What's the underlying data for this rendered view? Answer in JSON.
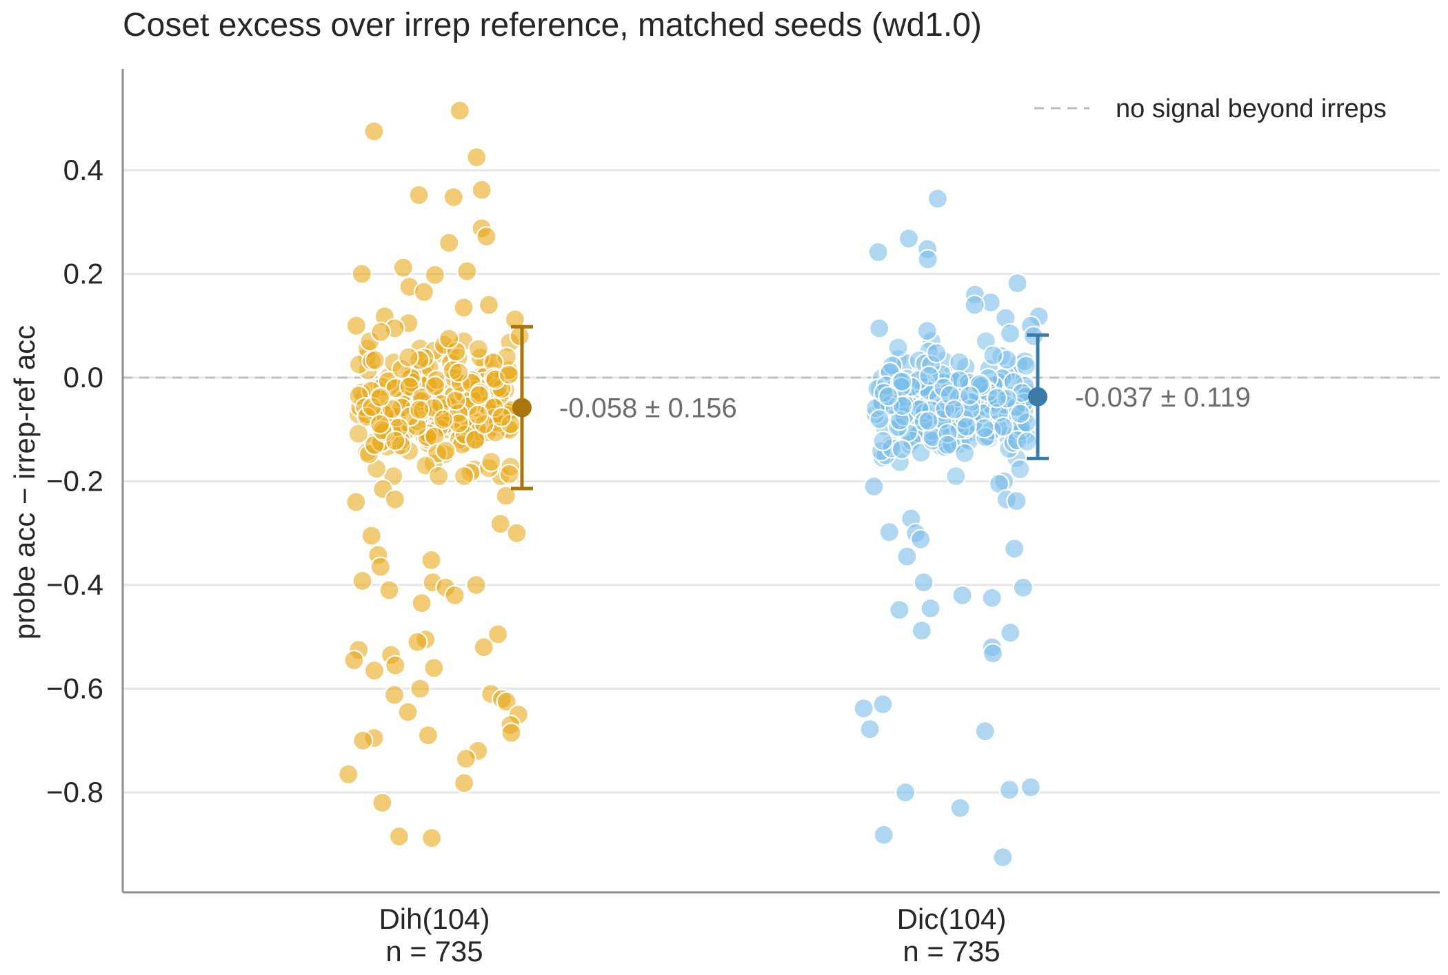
{
  "chart_data": {
    "type": "scatter",
    "title": "Coset excess over irrep reference, matched seeds (wd1.0)",
    "xlabel": "",
    "ylabel": "probe acc − irrep-ref acc",
    "ylim": [
      -1.0,
      0.58
    ],
    "yticks": [
      {
        "value": 0.4,
        "label": "0.4"
      },
      {
        "value": 0.2,
        "label": "0.2"
      },
      {
        "value": 0.0,
        "label": "0.0"
      },
      {
        "value": -0.2,
        "label": "−0.2"
      },
      {
        "value": -0.4,
        "label": "−0.4"
      },
      {
        "value": -0.6,
        "label": "−0.6"
      },
      {
        "value": -0.8,
        "label": "−0.8"
      }
    ],
    "grid": true,
    "legend": {
      "position": "top-right",
      "entries": [
        {
          "label": "no signal beyond irreps",
          "style": "dashed",
          "color": "#bdbdbd"
        }
      ]
    },
    "reference_line": {
      "y": 0.0
    },
    "categories": [
      {
        "name": "Dih(104)",
        "n_label": "n = 735"
      },
      {
        "name": "Dic(104)",
        "n_label": "n = 735"
      }
    ],
    "series": [
      {
        "name": "Dih(104)",
        "color": "#e8a919",
        "mean_color": "#a8760a",
        "n": 735,
        "mean": -0.058,
        "sd": 0.156,
        "annotation": "-0.058 ± 0.156",
        "outlier_values": [
          0.515,
          0.475,
          0.425,
          0.362,
          0.352,
          0.348,
          0.288,
          0.272,
          0.26,
          0.212,
          0.205,
          0.198,
          0.2,
          0.175,
          0.165,
          0.14,
          0.135,
          0.118,
          0.112,
          0.105,
          0.1,
          0.095,
          0.088,
          0.08,
          0.075,
          -0.24,
          -0.215,
          -0.228,
          -0.235,
          -0.282,
          -0.3,
          -0.305,
          -0.342,
          -0.352,
          -0.365,
          -0.392,
          -0.395,
          -0.4,
          -0.405,
          -0.41,
          -0.42,
          -0.435,
          -0.495,
          -0.505,
          -0.51,
          -0.52,
          -0.525,
          -0.535,
          -0.545,
          -0.555,
          -0.56,
          -0.565,
          -0.6,
          -0.61,
          -0.612,
          -0.62,
          -0.625,
          -0.645,
          -0.65,
          -0.67,
          -0.685,
          -0.69,
          -0.695,
          -0.7,
          -0.72,
          -0.735,
          -0.765,
          -0.782,
          -0.82,
          -0.885,
          -0.888
        ]
      },
      {
        "name": "Dic(104)",
        "color": "#79bde9",
        "mean_color": "#3a7ba8",
        "n": 735,
        "mean": -0.037,
        "sd": 0.119,
        "annotation": "-0.037 ± 0.119",
        "outlier_values": [
          0.345,
          0.268,
          0.248,
          0.242,
          0.228,
          0.182,
          0.16,
          0.145,
          0.14,
          0.118,
          0.115,
          0.1,
          0.095,
          0.09,
          0.085,
          0.08,
          -0.2,
          -0.205,
          -0.21,
          -0.235,
          -0.238,
          -0.272,
          -0.298,
          -0.3,
          -0.312,
          -0.33,
          -0.345,
          -0.395,
          -0.405,
          -0.42,
          -0.425,
          -0.445,
          -0.448,
          -0.488,
          -0.492,
          -0.52,
          -0.532,
          -0.63,
          -0.638,
          -0.678,
          -0.682,
          -0.79,
          -0.795,
          -0.8,
          -0.83,
          -0.882,
          -0.925
        ]
      }
    ]
  }
}
